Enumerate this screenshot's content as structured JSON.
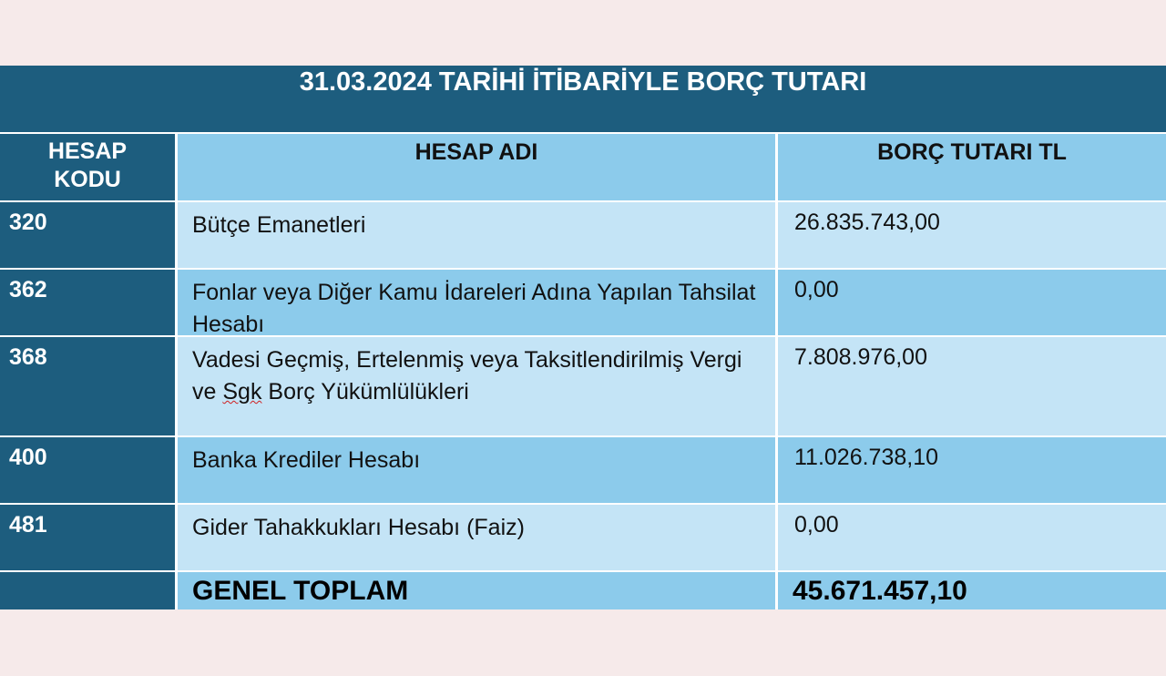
{
  "title": "31.03.2024 TARİHİ İTİBARİYLE BORÇ TUTARI",
  "headers": {
    "code": "HESAP KODU",
    "name": "HESAP ADI",
    "amount": "BORÇ TUTARI TL"
  },
  "rows": [
    {
      "code": "320",
      "name": "Bütçe Emanetleri",
      "amount": "26.835.743,00"
    },
    {
      "code": "362",
      "name": "Fonlar veya Diğer Kamu İdareleri Adına Yapılan Tahsilat Hesabı",
      "amount": "0,00"
    },
    {
      "code": "368",
      "name_a": "Vadesi Geçmiş, Ertelenmiş veya Taksitlendirilmiş Vergi ve ",
      "name_sq": "Sgk",
      "name_b": " Borç Yükümlülükleri",
      "amount": "7.808.976,00"
    },
    {
      "code": "400",
      "name": "Banka Krediler Hesabı",
      "amount": "11.026.738,10"
    },
    {
      "code": "481",
      "name": "Gider Tahakkukları Hesabı (Faiz)",
      "amount": "0,00"
    }
  ],
  "total": {
    "label": "GENEL TOPLAM",
    "amount": "45.671.457,10"
  },
  "colors": {
    "dark": "#1d5d7e",
    "header": "#8ccbeb",
    "light_row": "#c4e4f6",
    "background": "#f6eaea"
  }
}
